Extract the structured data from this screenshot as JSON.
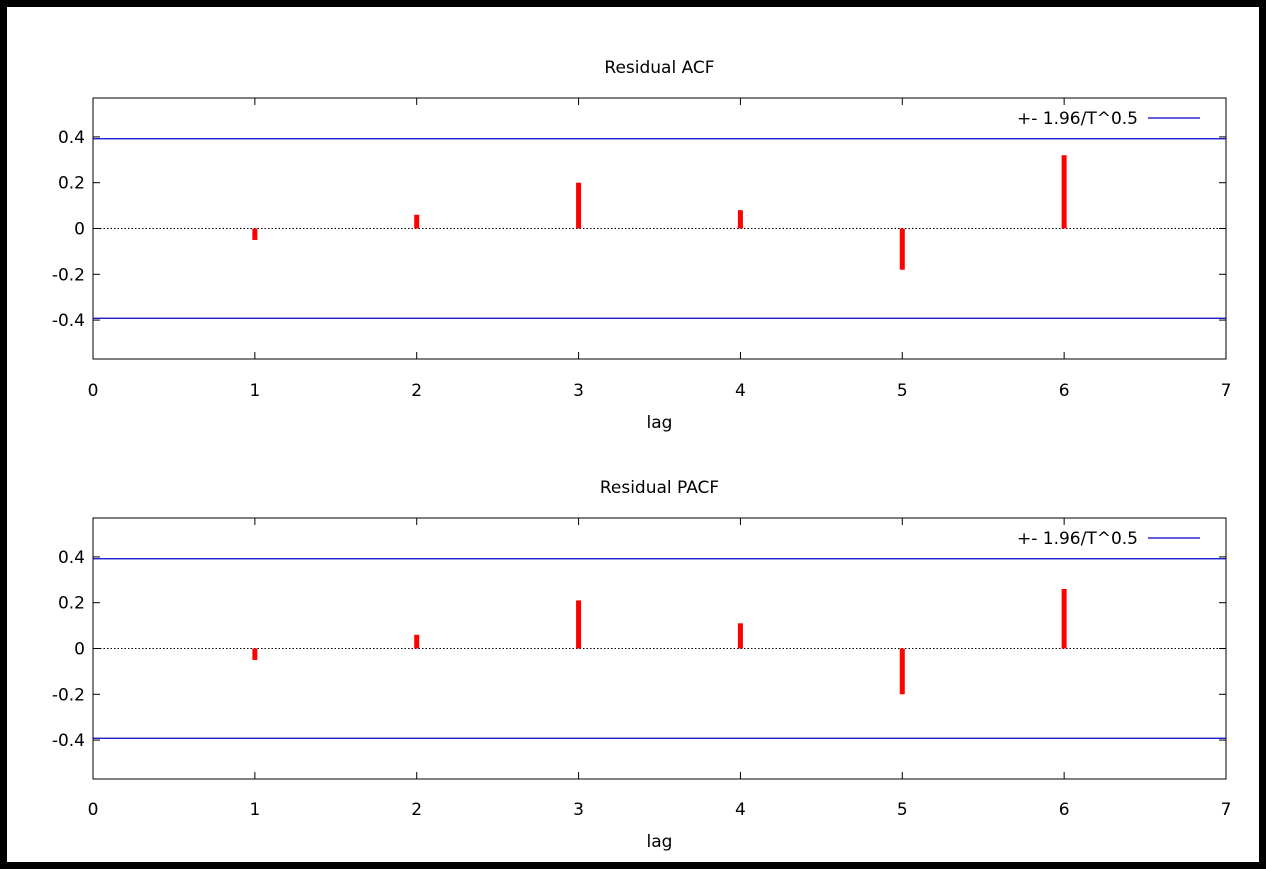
{
  "colors": {
    "bar": "#ff0000",
    "bound_line": "#0000cc",
    "axis": "#000000",
    "zero_line": "#000000"
  },
  "chart_data": [
    {
      "type": "bar",
      "title": "Residual ACF",
      "xlabel": "lag",
      "ylabel": "",
      "xlim": [
        0,
        7
      ],
      "ylim": [
        -0.57,
        0.57
      ],
      "xticks": [
        0,
        1,
        2,
        3,
        4,
        5,
        6,
        7
      ],
      "yticks": [
        -0.4,
        -0.2,
        0,
        0.2,
        0.4
      ],
      "ytick_labels": [
        "-0.4",
        "-0.2",
        "0",
        "0.2",
        "0.4"
      ],
      "x": [
        1,
        2,
        3,
        4,
        5,
        6
      ],
      "values": [
        -0.05,
        0.06,
        0.2,
        0.08,
        -0.18,
        0.32
      ],
      "bound_value": 0.392,
      "legend": {
        "label": "+- 1.96/T^0.5",
        "placement": "top-right"
      },
      "grid": false
    },
    {
      "type": "bar",
      "title": "Residual PACF",
      "xlabel": "lag",
      "ylabel": "",
      "xlim": [
        0,
        7
      ],
      "ylim": [
        -0.57,
        0.57
      ],
      "xticks": [
        0,
        1,
        2,
        3,
        4,
        5,
        6,
        7
      ],
      "yticks": [
        -0.4,
        -0.2,
        0,
        0.2,
        0.4
      ],
      "ytick_labels": [
        "-0.4",
        "-0.2",
        "0",
        "0.2",
        "0.4"
      ],
      "x": [
        1,
        2,
        3,
        4,
        5,
        6
      ],
      "values": [
        -0.05,
        0.06,
        0.21,
        0.11,
        -0.2,
        0.26
      ],
      "bound_value": 0.392,
      "legend": {
        "label": "+- 1.96/T^0.5",
        "placement": "top-right"
      },
      "grid": false
    }
  ]
}
